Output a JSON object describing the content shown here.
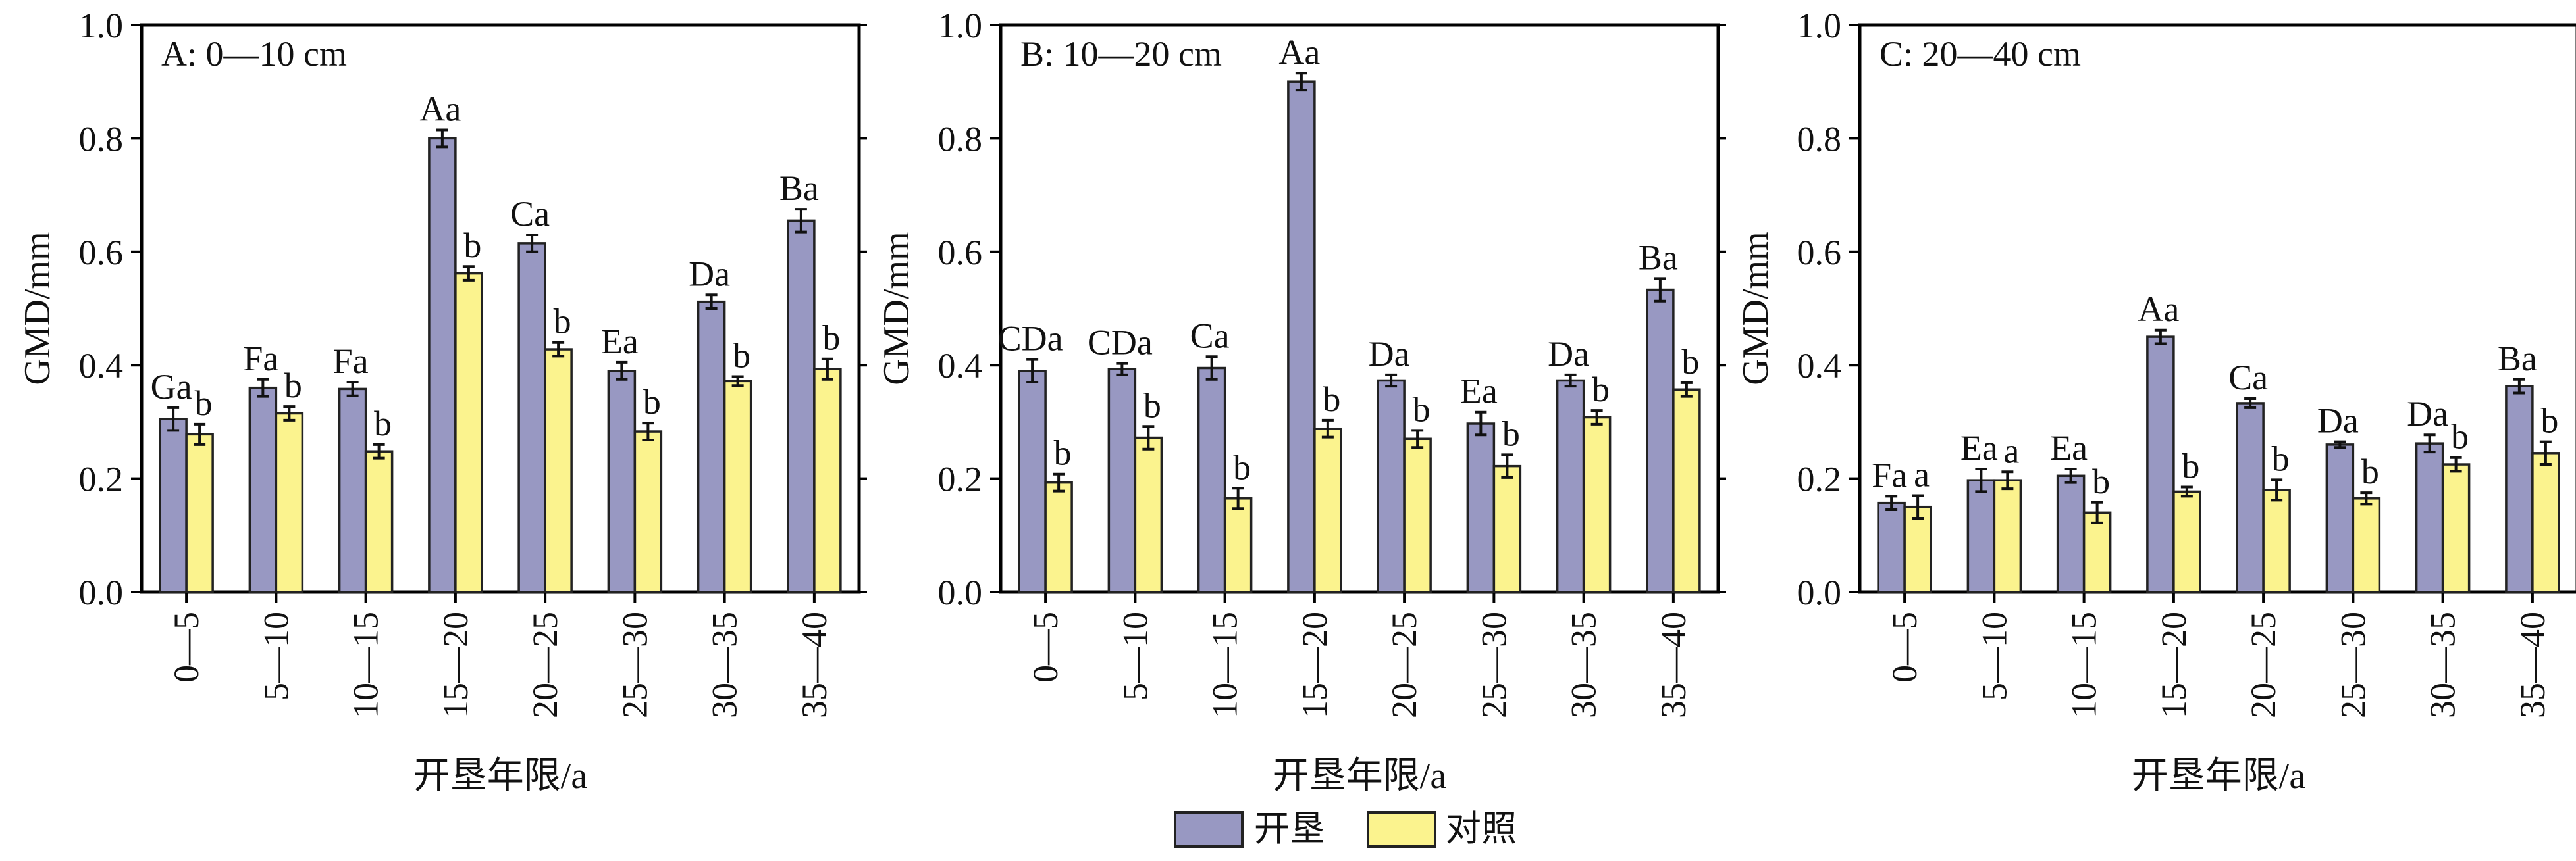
{
  "colors": {
    "reclaim": "#9898c2",
    "control": "#fbf38e"
  },
  "legend": {
    "reclaim": "开垦",
    "control": "对照"
  },
  "chart_data": [
    {
      "type": "bar",
      "title": "A: 0—10 cm",
      "xlabel": "开垦年限/a",
      "ylabel": "GMD/mm",
      "ylim": [
        0,
        1.0
      ],
      "yticks": [
        "0.0",
        "0.2",
        "0.4",
        "0.6",
        "0.8",
        "1.0"
      ],
      "categories": [
        "0—5",
        "5—10",
        "10—15",
        "15—20",
        "20—25",
        "25—30",
        "30—35",
        "35—40"
      ],
      "series": [
        {
          "name": "开垦",
          "values": [
            0.305,
            0.36,
            0.358,
            0.8,
            0.615,
            0.39,
            0.512,
            0.655
          ],
          "errors": [
            0.02,
            0.015,
            0.012,
            0.015,
            0.015,
            0.015,
            0.012,
            0.02
          ],
          "labels": [
            "Ga",
            "Fa",
            "Fa",
            "Aa",
            "Ca",
            "Ea",
            "Da",
            "Ba"
          ]
        },
        {
          "name": "对照",
          "values": [
            0.278,
            0.315,
            0.248,
            0.562,
            0.428,
            0.283,
            0.372,
            0.393
          ],
          "errors": [
            0.018,
            0.012,
            0.012,
            0.012,
            0.012,
            0.015,
            0.008,
            0.018
          ],
          "labels": [
            "b",
            "b",
            "b",
            "b",
            "b",
            "b",
            "b",
            "b"
          ]
        }
      ]
    },
    {
      "type": "bar",
      "title": "B: 10—20 cm",
      "xlabel": "开垦年限/a",
      "ylabel": "GMD/mm",
      "ylim": [
        0,
        1.0
      ],
      "yticks": [
        "0.0",
        "0.2",
        "0.4",
        "0.6",
        "0.8",
        "1.0"
      ],
      "categories": [
        "0—5",
        "5—10",
        "10—15",
        "15—20",
        "20—25",
        "25—30",
        "30—35",
        "35—40"
      ],
      "series": [
        {
          "name": "开垦",
          "values": [
            0.39,
            0.393,
            0.395,
            0.9,
            0.373,
            0.297,
            0.373,
            0.533
          ],
          "errors": [
            0.02,
            0.01,
            0.02,
            0.015,
            0.01,
            0.02,
            0.01,
            0.02
          ],
          "labels": [
            "CDa",
            "CDa",
            "Ca",
            "Aa",
            "Da",
            "Ea",
            "Da",
            "Ba"
          ]
        },
        {
          "name": "对照",
          "values": [
            0.193,
            0.272,
            0.165,
            0.288,
            0.27,
            0.222,
            0.308,
            0.357
          ],
          "errors": [
            0.015,
            0.02,
            0.018,
            0.015,
            0.015,
            0.02,
            0.012,
            0.012
          ],
          "labels": [
            "b",
            "b",
            "b",
            "b",
            "b",
            "b",
            "b",
            "b"
          ]
        }
      ]
    },
    {
      "type": "bar",
      "title": "C: 20—40 cm",
      "xlabel": "开垦年限/a",
      "ylabel": "GMD/mm",
      "ylim": [
        0,
        1.0
      ],
      "yticks": [
        "0.0",
        "0.2",
        "0.4",
        "0.6",
        "0.8",
        "1.0"
      ],
      "categories": [
        "0—5",
        "5—10",
        "10—15",
        "15—20",
        "20—25",
        "25—30",
        "30—35",
        "35—40"
      ],
      "series": [
        {
          "name": "开垦",
          "values": [
            0.157,
            0.197,
            0.205,
            0.45,
            0.333,
            0.26,
            0.262,
            0.363
          ],
          "errors": [
            0.012,
            0.02,
            0.012,
            0.012,
            0.008,
            0.005,
            0.015,
            0.012
          ],
          "labels": [
            "Fa",
            "Ea",
            "Ea",
            "Aa",
            "Ca",
            "Da",
            "Da",
            "Ba"
          ]
        },
        {
          "name": "对照",
          "values": [
            0.15,
            0.197,
            0.14,
            0.177,
            0.18,
            0.165,
            0.225,
            0.245
          ],
          "errors": [
            0.02,
            0.015,
            0.018,
            0.008,
            0.018,
            0.01,
            0.012,
            0.02
          ],
          "labels": [
            "a",
            "a",
            "b",
            "b",
            "b",
            "b",
            "b",
            "b"
          ]
        }
      ]
    }
  ]
}
